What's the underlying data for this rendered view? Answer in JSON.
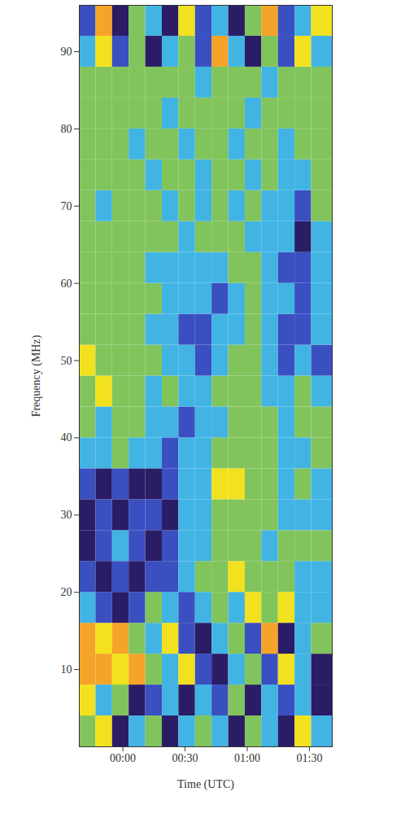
{
  "chart_data": {
    "type": "heatmap",
    "x_label": "Time (UTC)",
    "y_label": "Frequency (MHz)",
    "xlim": [
      -21,
      101
    ],
    "xticks": [
      {
        "value": 0,
        "label": "00:00"
      },
      {
        "value": 30,
        "label": "00:30"
      },
      {
        "value": 60,
        "label": "01:00"
      },
      {
        "value": 90,
        "label": "01:30"
      }
    ],
    "ylim": [
      0,
      96
    ],
    "yticks": [
      10,
      20,
      30,
      40,
      50,
      60,
      70,
      80,
      90
    ],
    "tick_labels": true,
    "time_bins": [
      -21,
      -13,
      -5,
      3,
      11,
      19,
      27,
      35,
      43,
      51,
      59,
      67,
      75,
      83,
      91,
      101
    ],
    "frequency_bins": [
      0,
      4,
      8,
      12,
      16,
      20,
      24,
      28,
      32,
      36,
      40,
      44,
      48,
      52,
      56,
      60,
      64,
      68,
      72,
      76,
      80,
      84,
      88,
      92,
      96
    ],
    "color_scale": {
      "levels": [
        0,
        1,
        2,
        3,
        4,
        5
      ],
      "colors": [
        "#2b1c66",
        "#3a4fc0",
        "#42b4e4",
        "#82c45c",
        "#f2e11e",
        "#f5a329"
      ]
    },
    "cells": [
      [
        3,
        4,
        0,
        2,
        3,
        0,
        2,
        3,
        2,
        0,
        3,
        2,
        0,
        4,
        2
      ],
      [
        4,
        2,
        3,
        0,
        1,
        2,
        0,
        2,
        1,
        3,
        0,
        2,
        1,
        2,
        0
      ],
      [
        5,
        5,
        4,
        5,
        3,
        2,
        4,
        1,
        0,
        2,
        3,
        1,
        4,
        2,
        0
      ],
      [
        5,
        4,
        5,
        3,
        2,
        4,
        1,
        0,
        2,
        3,
        1,
        5,
        0,
        2,
        3
      ],
      [
        2,
        1,
        0,
        1,
        3,
        2,
        1,
        2,
        3,
        2,
        4,
        3,
        4,
        2,
        2
      ],
      [
        1,
        0,
        1,
        0,
        1,
        1,
        2,
        3,
        3,
        4,
        3,
        3,
        3,
        2,
        2
      ],
      [
        0,
        1,
        2,
        1,
        0,
        1,
        2,
        2,
        3,
        3,
        3,
        2,
        3,
        3,
        3
      ],
      [
        0,
        1,
        0,
        1,
        1,
        0,
        2,
        2,
        3,
        3,
        3,
        3,
        2,
        2,
        2
      ],
      [
        1,
        0,
        1,
        0,
        0,
        1,
        2,
        2,
        4,
        4,
        3,
        3,
        2,
        3,
        2
      ],
      [
        2,
        2,
        3,
        2,
        2,
        1,
        2,
        2,
        3,
        3,
        3,
        3,
        2,
        2,
        3
      ],
      [
        3,
        2,
        3,
        3,
        2,
        2,
        1,
        2,
        2,
        3,
        3,
        3,
        2,
        3,
        3
      ],
      [
        3,
        4,
        3,
        3,
        2,
        3,
        2,
        2,
        3,
        3,
        3,
        2,
        2,
        3,
        2
      ],
      [
        4,
        3,
        3,
        3,
        3,
        2,
        2,
        1,
        2,
        3,
        3,
        2,
        1,
        2,
        1
      ],
      [
        3,
        3,
        3,
        3,
        2,
        2,
        1,
        1,
        2,
        2,
        3,
        2,
        1,
        1,
        2
      ],
      [
        3,
        3,
        3,
        3,
        3,
        2,
        2,
        2,
        1,
        2,
        3,
        2,
        2,
        1,
        2
      ],
      [
        3,
        3,
        3,
        3,
        2,
        2,
        2,
        2,
        2,
        3,
        3,
        2,
        1,
        1,
        2
      ],
      [
        3,
        3,
        3,
        3,
        3,
        3,
        2,
        3,
        3,
        3,
        2,
        2,
        2,
        0,
        2
      ],
      [
        3,
        2,
        3,
        3,
        3,
        2,
        3,
        2,
        3,
        2,
        3,
        2,
        2,
        1,
        3
      ],
      [
        3,
        3,
        3,
        3,
        2,
        3,
        3,
        2,
        3,
        3,
        2,
        3,
        2,
        2,
        3
      ],
      [
        3,
        3,
        3,
        2,
        3,
        3,
        2,
        3,
        3,
        2,
        3,
        3,
        2,
        3,
        3
      ],
      [
        3,
        3,
        3,
        3,
        3,
        2,
        3,
        3,
        3,
        3,
        2,
        3,
        3,
        3,
        3
      ],
      [
        3,
        3,
        3,
        3,
        3,
        3,
        3,
        2,
        3,
        3,
        3,
        2,
        3,
        3,
        3
      ],
      [
        2,
        4,
        1,
        3,
        0,
        2,
        3,
        1,
        5,
        2,
        0,
        3,
        1,
        4,
        2
      ],
      [
        1,
        5,
        0,
        3,
        2,
        0,
        4,
        1,
        2,
        0,
        3,
        5,
        1,
        2,
        4
      ]
    ]
  }
}
